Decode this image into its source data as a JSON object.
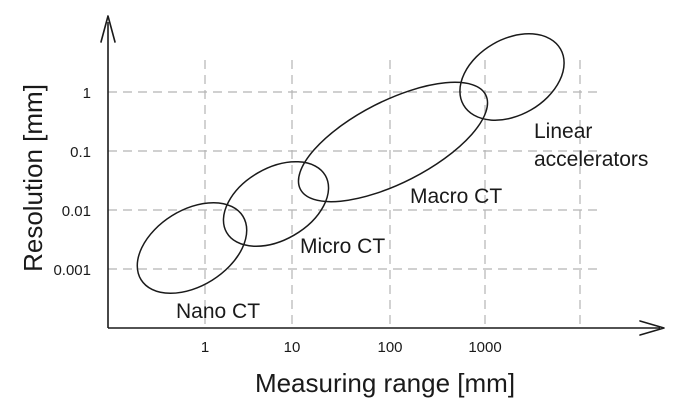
{
  "axes": {
    "x_title": "Measuring range [mm]",
    "y_title": "Resolution [mm]",
    "x_ticks": [
      "1",
      "10",
      "100",
      "1000"
    ],
    "y_ticks": [
      "1",
      "0.1",
      "0.01",
      "0.001"
    ]
  },
  "regions": [
    {
      "id": "nano-ct",
      "label_lines": [
        "Nano CT"
      ]
    },
    {
      "id": "micro-ct",
      "label_lines": [
        "Micro CT"
      ]
    },
    {
      "id": "macro-ct",
      "label_lines": [
        "Macro CT"
      ]
    },
    {
      "id": "linear-accelerators",
      "label_lines": [
        "Linear",
        "accelerators"
      ]
    }
  ],
  "colors": {
    "ink": "#1a1a1a",
    "grid": "#b4b4b4",
    "background": "#ffffff"
  }
}
